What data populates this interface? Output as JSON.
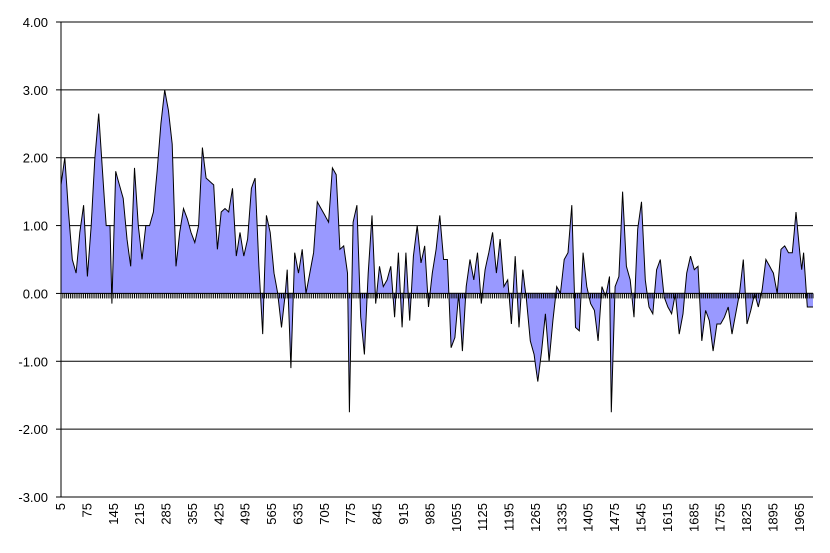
{
  "chart_data": {
    "type": "area",
    "title": "",
    "xlabel": "",
    "ylabel": "",
    "ylim": [
      -3,
      4
    ],
    "xlim": [
      5,
      2000
    ],
    "x_step": 5,
    "y_ticks": [
      "-3.00",
      "-2.00",
      "-1.00",
      "0.00",
      "1.00",
      "2.00",
      "3.00",
      "4.00"
    ],
    "x_tick_labels": [
      "5",
      "75",
      "145",
      "215",
      "285",
      "355",
      "425",
      "495",
      "565",
      "635",
      "705",
      "775",
      "845",
      "915",
      "985",
      "1055",
      "1125",
      "1195",
      "1265",
      "1335",
      "1405",
      "1475",
      "1545",
      "1615",
      "1685",
      "1755",
      "1825",
      "1895",
      "1965"
    ],
    "grid": true,
    "fill_color": "#9999ff",
    "line_color": "#000000",
    "keypoints": [
      [
        5,
        1.6
      ],
      [
        15,
        2.0
      ],
      [
        25,
        1.2
      ],
      [
        35,
        0.5
      ],
      [
        45,
        0.3
      ],
      [
        55,
        0.9
      ],
      [
        65,
        1.3
      ],
      [
        75,
        0.25
      ],
      [
        85,
        1.0
      ],
      [
        95,
        2.0
      ],
      [
        105,
        2.65
      ],
      [
        115,
        1.8
      ],
      [
        125,
        1.0
      ],
      [
        135,
        1.0
      ],
      [
        140,
        -0.15
      ],
      [
        150,
        1.8
      ],
      [
        160,
        1.6
      ],
      [
        170,
        1.4
      ],
      [
        180,
        0.8
      ],
      [
        190,
        0.4
      ],
      [
        200,
        1.85
      ],
      [
        210,
        1.0
      ],
      [
        220,
        0.5
      ],
      [
        230,
        1.0
      ],
      [
        240,
        1.0
      ],
      [
        250,
        1.2
      ],
      [
        260,
        1.8
      ],
      [
        270,
        2.5
      ],
      [
        280,
        3.0
      ],
      [
        290,
        2.7
      ],
      [
        300,
        2.2
      ],
      [
        310,
        0.4
      ],
      [
        320,
        0.9
      ],
      [
        330,
        1.25
      ],
      [
        340,
        1.1
      ],
      [
        350,
        0.9
      ],
      [
        360,
        0.75
      ],
      [
        370,
        1.0
      ],
      [
        380,
        2.15
      ],
      [
        390,
        1.7
      ],
      [
        400,
        1.65
      ],
      [
        410,
        1.6
      ],
      [
        420,
        0.65
      ],
      [
        430,
        1.2
      ],
      [
        440,
        1.25
      ],
      [
        450,
        1.2
      ],
      [
        460,
        1.55
      ],
      [
        470,
        0.55
      ],
      [
        480,
        0.9
      ],
      [
        490,
        0.55
      ],
      [
        500,
        0.8
      ],
      [
        510,
        1.55
      ],
      [
        520,
        1.7
      ],
      [
        530,
        0.4
      ],
      [
        540,
        -0.6
      ],
      [
        550,
        1.15
      ],
      [
        560,
        0.9
      ],
      [
        570,
        0.3
      ],
      [
        580,
        0.0
      ],
      [
        590,
        -0.5
      ],
      [
        600,
        0.0
      ],
      [
        605,
        0.35
      ],
      [
        615,
        -1.1
      ],
      [
        625,
        0.6
      ],
      [
        635,
        0.3
      ],
      [
        645,
        0.65
      ],
      [
        655,
        0.0
      ],
      [
        665,
        0.3
      ],
      [
        675,
        0.6
      ],
      [
        685,
        1.35
      ],
      [
        695,
        1.25
      ],
      [
        705,
        1.15
      ],
      [
        715,
        1.05
      ],
      [
        725,
        1.85
      ],
      [
        735,
        1.75
      ],
      [
        745,
        0.65
      ],
      [
        755,
        0.7
      ],
      [
        765,
        0.3
      ],
      [
        770,
        -1.75
      ],
      [
        780,
        1.05
      ],
      [
        790,
        1.3
      ],
      [
        800,
        -0.35
      ],
      [
        810,
        -0.9
      ],
      [
        820,
        0.3
      ],
      [
        830,
        1.15
      ],
      [
        840,
        -0.15
      ],
      [
        850,
        0.4
      ],
      [
        860,
        0.1
      ],
      [
        870,
        0.2
      ],
      [
        880,
        0.4
      ],
      [
        890,
        -0.35
      ],
      [
        900,
        0.6
      ],
      [
        910,
        -0.5
      ],
      [
        920,
        0.6
      ],
      [
        930,
        -0.4
      ],
      [
        940,
        0.55
      ],
      [
        950,
        1.0
      ],
      [
        960,
        0.45
      ],
      [
        970,
        0.7
      ],
      [
        980,
        -0.2
      ],
      [
        990,
        0.3
      ],
      [
        1000,
        0.65
      ],
      [
        1010,
        1.15
      ],
      [
        1020,
        0.5
      ],
      [
        1030,
        0.5
      ],
      [
        1040,
        -0.8
      ],
      [
        1050,
        -0.65
      ],
      [
        1060,
        0.0
      ],
      [
        1070,
        -0.85
      ],
      [
        1080,
        0.1
      ],
      [
        1090,
        0.5
      ],
      [
        1100,
        0.2
      ],
      [
        1110,
        0.6
      ],
      [
        1120,
        -0.15
      ],
      [
        1130,
        0.35
      ],
      [
        1140,
        0.6
      ],
      [
        1150,
        0.9
      ],
      [
        1160,
        0.3
      ],
      [
        1170,
        0.8
      ],
      [
        1180,
        0.1
      ],
      [
        1190,
        0.2
      ],
      [
        1200,
        -0.45
      ],
      [
        1210,
        0.55
      ],
      [
        1220,
        -0.5
      ],
      [
        1230,
        0.35
      ],
      [
        1240,
        -0.1
      ],
      [
        1250,
        -0.7
      ],
      [
        1260,
        -0.9
      ],
      [
        1270,
        -1.3
      ],
      [
        1280,
        -0.85
      ],
      [
        1290,
        -0.3
      ],
      [
        1300,
        -1.0
      ],
      [
        1310,
        -0.4
      ],
      [
        1320,
        0.1
      ],
      [
        1330,
        0.0
      ],
      [
        1340,
        0.5
      ],
      [
        1350,
        0.6
      ],
      [
        1360,
        1.3
      ],
      [
        1370,
        -0.5
      ],
      [
        1380,
        -0.55
      ],
      [
        1390,
        0.6
      ],
      [
        1400,
        0.1
      ],
      [
        1410,
        -0.15
      ],
      [
        1420,
        -0.25
      ],
      [
        1430,
        -0.7
      ],
      [
        1440,
        0.1
      ],
      [
        1450,
        -0.05
      ],
      [
        1460,
        0.25
      ],
      [
        1465,
        -1.75
      ],
      [
        1475,
        0.1
      ],
      [
        1485,
        0.25
      ],
      [
        1495,
        1.5
      ],
      [
        1505,
        0.4
      ],
      [
        1515,
        0.2
      ],
      [
        1525,
        -0.35
      ],
      [
        1535,
        0.95
      ],
      [
        1545,
        1.35
      ],
      [
        1555,
        0.2
      ],
      [
        1565,
        -0.2
      ],
      [
        1575,
        -0.3
      ],
      [
        1585,
        0.35
      ],
      [
        1595,
        0.5
      ],
      [
        1605,
        -0.05
      ],
      [
        1615,
        -0.2
      ],
      [
        1625,
        -0.3
      ],
      [
        1635,
        0.0
      ],
      [
        1645,
        -0.6
      ],
      [
        1655,
        -0.3
      ],
      [
        1665,
        0.3
      ],
      [
        1675,
        0.55
      ],
      [
        1685,
        0.35
      ],
      [
        1695,
        0.4
      ],
      [
        1705,
        -0.7
      ],
      [
        1715,
        -0.25
      ],
      [
        1725,
        -0.4
      ],
      [
        1735,
        -0.85
      ],
      [
        1745,
        -0.45
      ],
      [
        1755,
        -0.45
      ],
      [
        1765,
        -0.35
      ],
      [
        1775,
        -0.2
      ],
      [
        1785,
        -0.6
      ],
      [
        1795,
        -0.3
      ],
      [
        1805,
        0.0
      ],
      [
        1815,
        0.5
      ],
      [
        1825,
        -0.45
      ],
      [
        1835,
        -0.25
      ],
      [
        1845,
        0.0
      ],
      [
        1855,
        -0.2
      ],
      [
        1865,
        0.05
      ],
      [
        1875,
        0.5
      ],
      [
        1885,
        0.4
      ],
      [
        1895,
        0.3
      ],
      [
        1905,
        0.0
      ],
      [
        1915,
        0.65
      ],
      [
        1925,
        0.7
      ],
      [
        1935,
        0.6
      ],
      [
        1945,
        0.6
      ],
      [
        1955,
        1.2
      ],
      [
        1965,
        0.6
      ],
      [
        1970,
        0.35
      ],
      [
        1975,
        0.6
      ],
      [
        1985,
        -0.2
      ],
      [
        2000,
        -0.2
      ]
    ]
  }
}
